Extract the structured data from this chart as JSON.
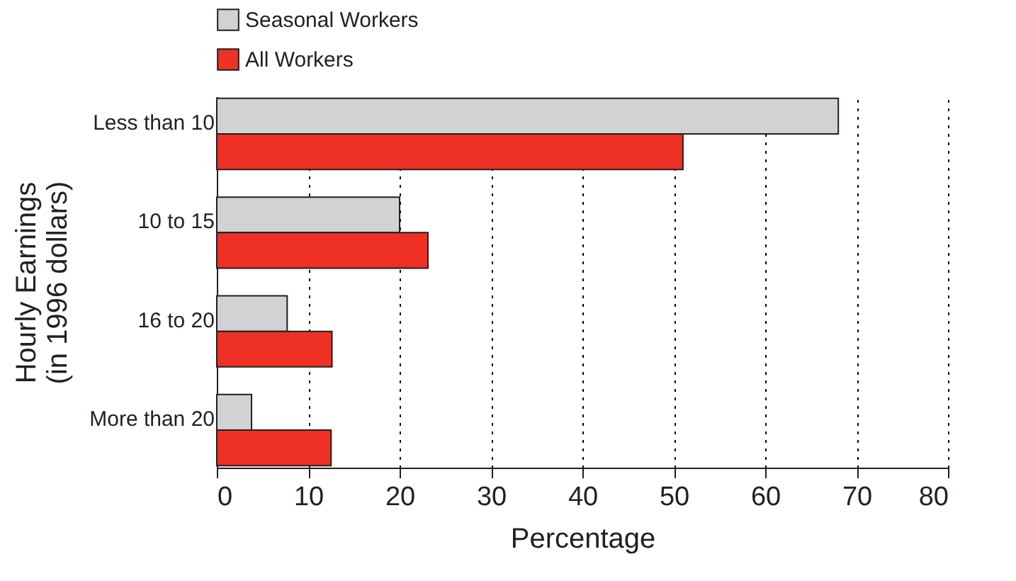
{
  "chart_data": {
    "type": "bar",
    "orientation": "horizontal",
    "xlabel": "Percentage",
    "ylabel": "Hourly Earnings\n(in 1996 dollars)",
    "categories": [
      "Less than 10",
      "10 to 15",
      "16 to 20",
      "More than 20"
    ],
    "series": [
      {
        "name": "Seasonal Workers",
        "color": "#d1d2d4",
        "values": [
          68,
          20,
          7.7,
          3.8
        ]
      },
      {
        "name": "All Workers",
        "color": "#ee3124",
        "values": [
          51,
          23.1,
          12.6,
          12.5
        ]
      }
    ],
    "xlim": [
      0,
      80
    ],
    "xticks": [
      0,
      10,
      20,
      30,
      40,
      50,
      60,
      70,
      80
    ],
    "grid": "x",
    "legend": "top"
  }
}
